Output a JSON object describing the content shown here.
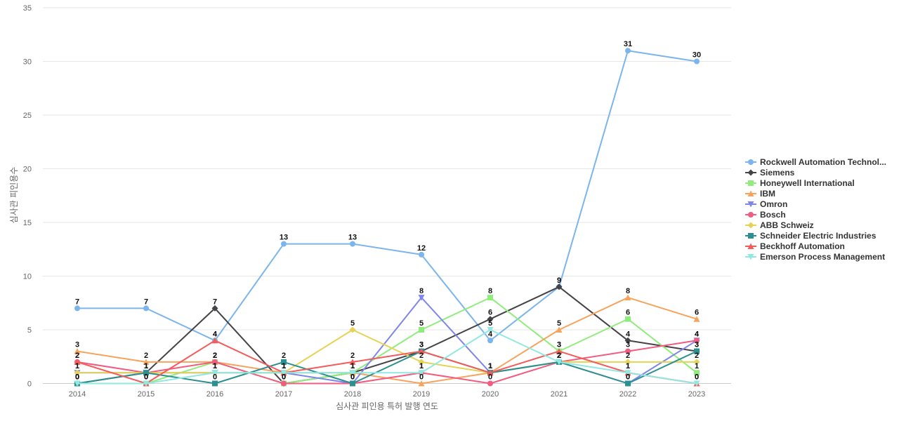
{
  "chart_data": {
    "type": "line",
    "title": "",
    "xlabel": "심사관 피인용 특허 발행 연도",
    "ylabel": "심사관 피인용수",
    "ylim": [
      0,
      35
    ],
    "yticks": [
      0,
      5,
      10,
      15,
      20,
      25,
      30,
      35
    ],
    "grid": true,
    "legend_position": "right",
    "categories": [
      "2014",
      "2015",
      "2016",
      "2017",
      "2018",
      "2019",
      "2020",
      "2021",
      "2022",
      "2023"
    ],
    "series": [
      {
        "name": "Rockwell Automation Technol...",
        "color": "#7cb5ec",
        "marker": "circle",
        "values": [
          7,
          7,
          4,
          13,
          13,
          12,
          4,
          9,
          31,
          30
        ]
      },
      {
        "name": "Siemens",
        "color": "#434348",
        "marker": "diamond",
        "values": [
          0,
          1,
          7,
          0,
          1,
          3,
          6,
          9,
          4,
          3
        ]
      },
      {
        "name": "Honeywell International",
        "color": "#90ed7d",
        "marker": "square",
        "values": [
          0,
          0,
          2,
          0,
          1,
          5,
          8,
          3,
          6,
          1
        ]
      },
      {
        "name": "IBM",
        "color": "#f7a35c",
        "marker": "triangle",
        "values": [
          3,
          2,
          2,
          1,
          1,
          0,
          1,
          5,
          8,
          6
        ]
      },
      {
        "name": "Omron",
        "color": "#8085e9",
        "marker": "triangle-down",
        "values": [
          1,
          1,
          1,
          1,
          0,
          8,
          1,
          2,
          0,
          4
        ]
      },
      {
        "name": "Bosch",
        "color": "#f15c80",
        "marker": "circle",
        "values": [
          2,
          1,
          2,
          0,
          0,
          1,
          0,
          2,
          3,
          4
        ]
      },
      {
        "name": "ABB Schweiz",
        "color": "#e4d354",
        "marker": "diamond",
        "values": [
          1,
          1,
          1,
          1,
          5,
          2,
          1,
          2,
          2,
          2
        ]
      },
      {
        "name": "Schneider Electric Industries",
        "color": "#2b908f",
        "marker": "square",
        "values": [
          0,
          1,
          0,
          2,
          0,
          3,
          1,
          2,
          0,
          3
        ]
      },
      {
        "name": "Beckhoff Automation",
        "color": "#f45b5b",
        "marker": "triangle",
        "values": [
          2,
          0,
          4,
          1,
          2,
          3,
          1,
          3,
          1,
          0
        ]
      },
      {
        "name": "Emerson Process Management",
        "color": "#91e8e1",
        "marker": "triangle-down",
        "values": [
          0,
          0,
          1,
          1,
          1,
          1,
          5,
          2,
          1,
          0
        ]
      }
    ]
  }
}
